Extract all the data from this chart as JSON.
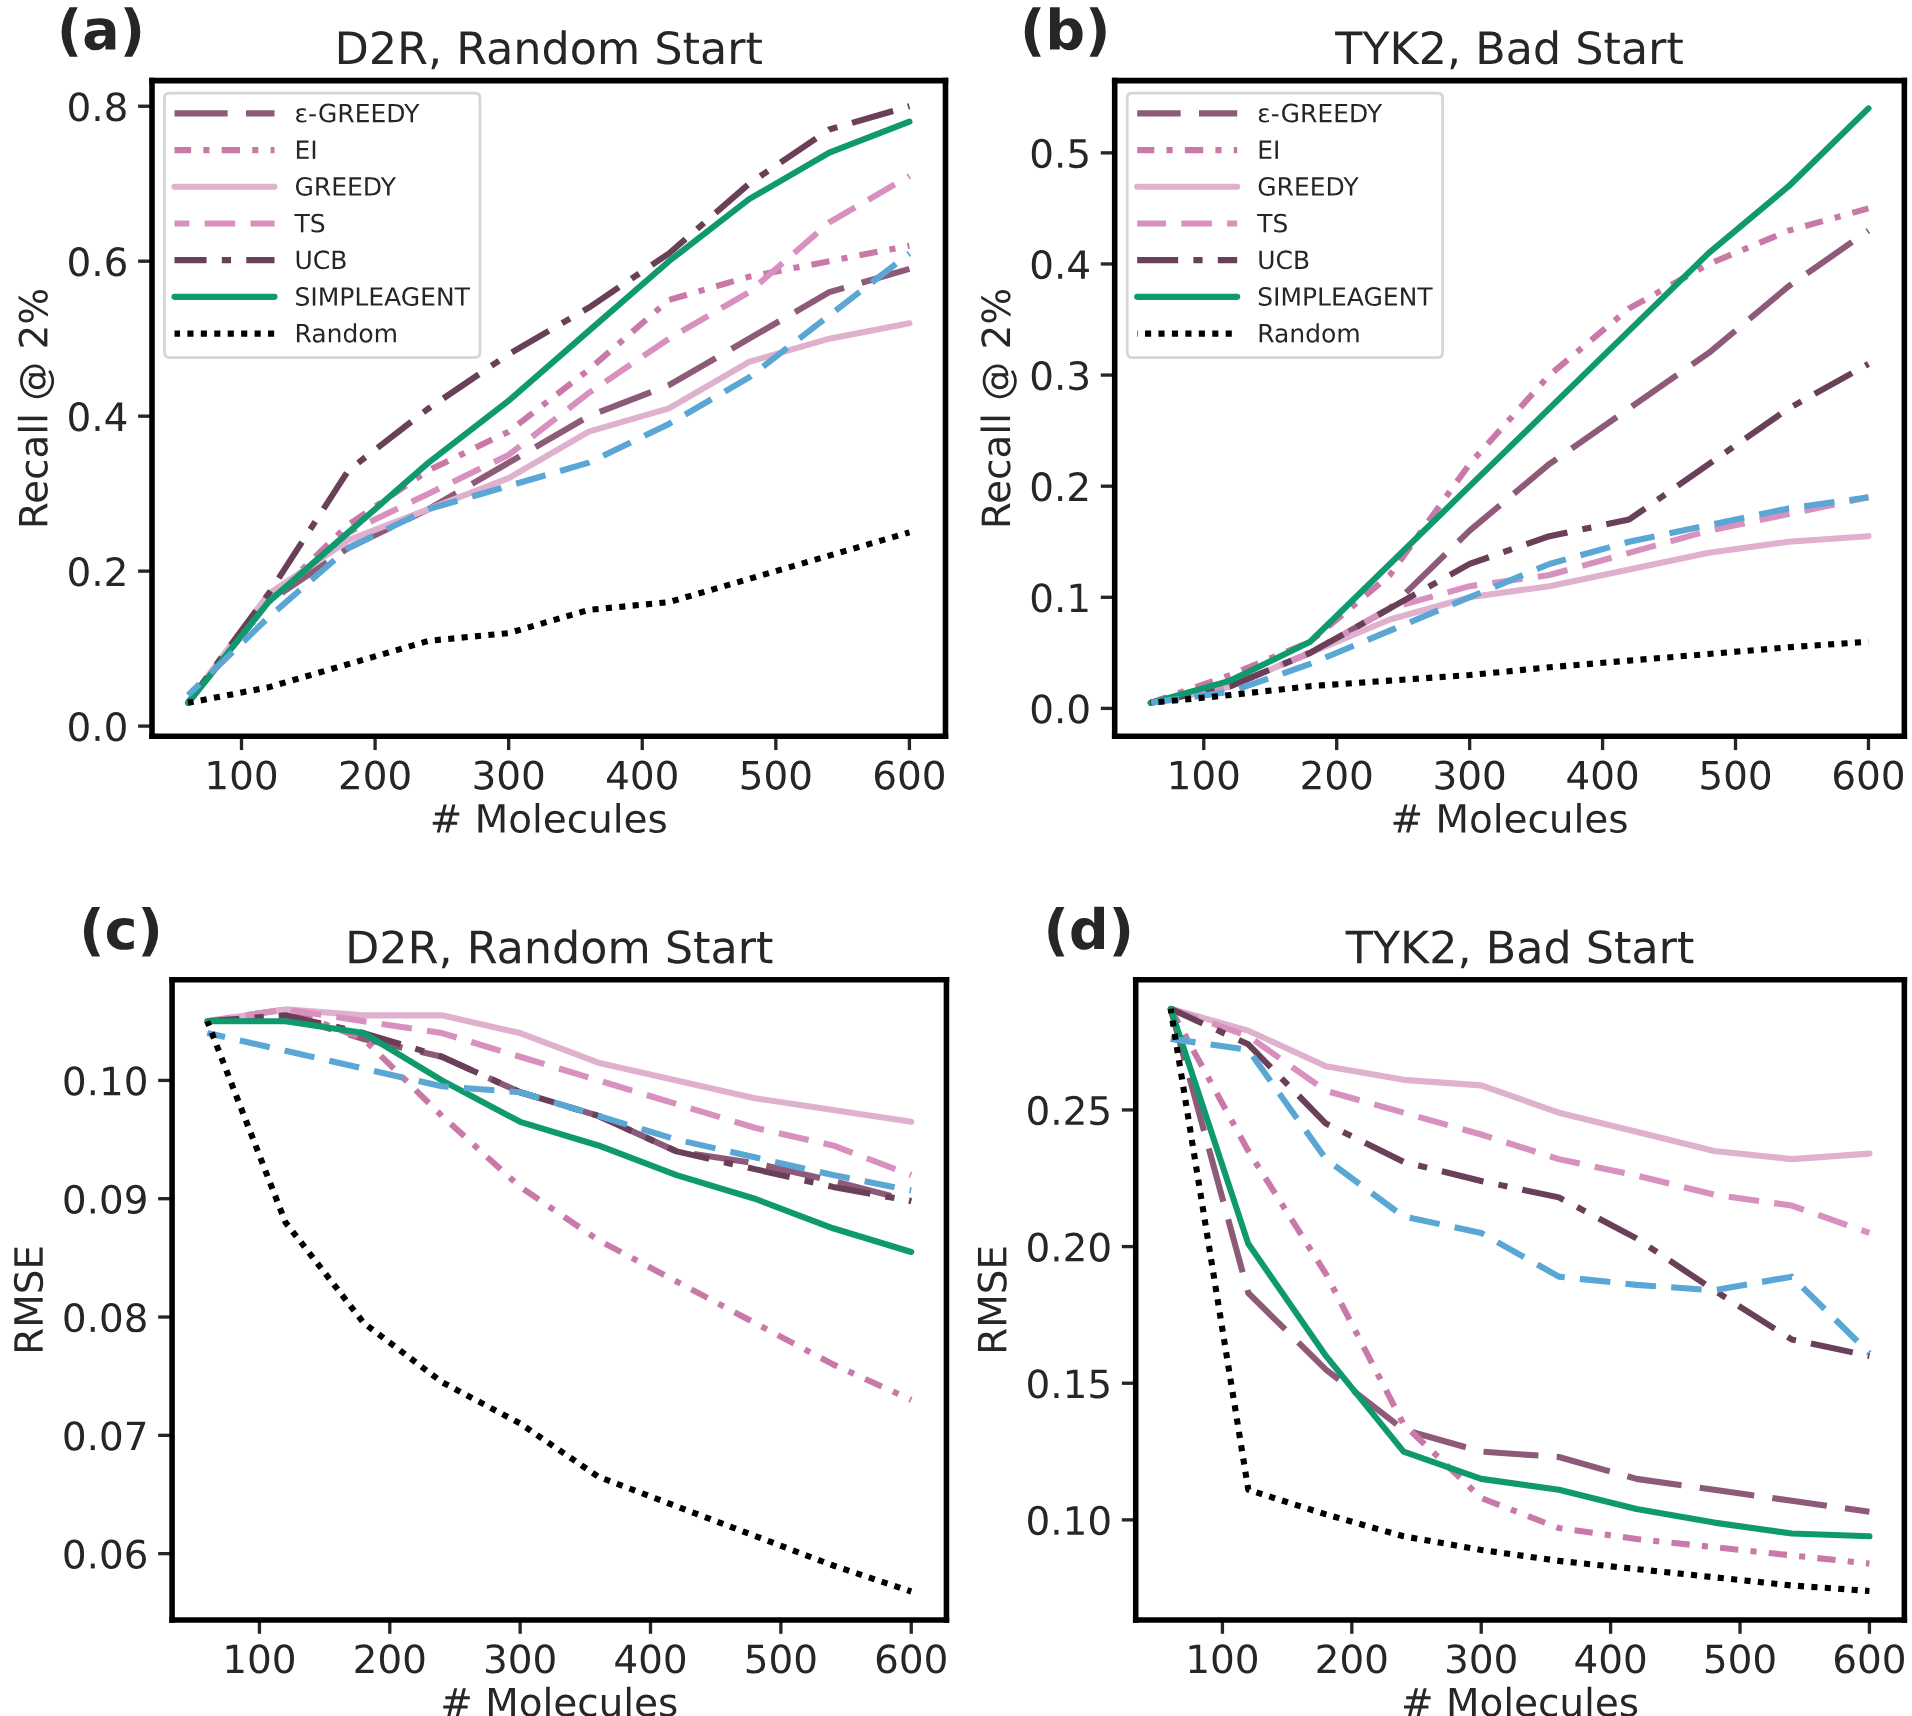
{
  "chart_data": [
    {
      "type": "line",
      "title": "D2R, Random Start",
      "annotations": [
        "(a)"
      ],
      "xlabel": "# Molecules",
      "ylabel": "Recall @ 2%",
      "x": [
        60,
        120,
        180,
        240,
        300,
        360,
        420,
        480,
        540,
        600
      ],
      "xlim": [
        33,
        627
      ],
      "xticks": [
        100,
        200,
        300,
        400,
        500,
        600
      ],
      "ylim": [
        -0.013,
        0.833
      ],
      "yticks": [
        {
          "value": 0,
          "label": "0.0"
        },
        0.2,
        0.4,
        0.6,
        0.8
      ],
      "legend": "top left",
      "grid": false,
      "series": [
        {
          "name": "ε-GREEDY",
          "color": "#8e5a7a",
          "line_style": "longdash",
          "values": [
            0.03,
            0.16,
            0.23,
            0.28,
            0.34,
            0.4,
            0.44,
            0.5,
            0.56,
            0.59
          ]
        },
        {
          "name": "EI",
          "color": "#c979a8",
          "line_style": "densedashdot",
          "values": [
            0.03,
            0.16,
            0.26,
            0.33,
            0.38,
            0.46,
            0.55,
            0.58,
            0.6,
            0.62
          ]
        },
        {
          "name": "GREEDY",
          "color": "#e0b0cf",
          "line_style": "solid",
          "values": [
            0.03,
            0.17,
            0.24,
            0.28,
            0.32,
            0.38,
            0.41,
            0.47,
            0.5,
            0.52
          ]
        },
        {
          "name": "TS",
          "color": "#d890bf",
          "line_style": "dashed",
          "values": [
            0.03,
            0.16,
            0.25,
            0.3,
            0.35,
            0.43,
            0.5,
            0.56,
            0.65,
            0.71
          ]
        },
        {
          "name": "UCB",
          "color": "#6a3f58",
          "line_style": "dashdot",
          "values": [
            0.03,
            0.17,
            0.33,
            0.41,
            0.48,
            0.54,
            0.61,
            0.7,
            0.77,
            0.8
          ]
        },
        {
          "name": "SIMPLEAGENT",
          "color": "#0f9a6e",
          "line_style": "solid",
          "values": [
            0.03,
            0.16,
            0.25,
            0.34,
            0.42,
            0.51,
            0.6,
            0.68,
            0.74,
            0.78
          ]
        },
        {
          "color": "#5aa6d4",
          "line_style": "dashed",
          "values": [
            0.04,
            0.14,
            0.23,
            0.28,
            0.31,
            0.34,
            0.39,
            0.45,
            0.53,
            0.61
          ]
        },
        {
          "name": "Random",
          "color": "#000000",
          "line_style": "dotted",
          "values": [
            0.03,
            0.05,
            0.08,
            0.11,
            0.12,
            0.15,
            0.16,
            0.19,
            0.22,
            0.25
          ]
        }
      ]
    },
    {
      "type": "line",
      "title": "TYK2, Bad Start",
      "annotations": [
        "(b)"
      ],
      "xlabel": "# Molecules",
      "ylabel": "Recall @ 2%",
      "x": [
        60,
        120,
        180,
        240,
        300,
        360,
        420,
        480,
        540,
        600
      ],
      "xlim": [
        33,
        627
      ],
      "xticks": [
        100,
        200,
        300,
        400,
        500,
        600
      ],
      "ylim": [
        -0.025,
        0.565
      ],
      "yticks": [
        {
          "value": 0,
          "label": "0.0"
        },
        0.1,
        0.2,
        0.3,
        0.4,
        0.5
      ],
      "legend": "top left",
      "grid": false,
      "series": [
        {
          "name": "ε-GREEDY",
          "color": "#8e5a7a",
          "line_style": "longdash",
          "values": [
            0.005,
            0.02,
            0.05,
            0.09,
            0.16,
            0.22,
            0.27,
            0.32,
            0.38,
            0.43
          ]
        },
        {
          "name": "EI",
          "color": "#c979a8",
          "line_style": "densedashdot",
          "values": [
            0.005,
            0.03,
            0.06,
            0.12,
            0.22,
            0.3,
            0.36,
            0.4,
            0.43,
            0.45
          ]
        },
        {
          "name": "GREEDY",
          "color": "#e0b0cf",
          "line_style": "solid",
          "values": [
            0.005,
            0.02,
            0.05,
            0.08,
            0.1,
            0.11,
            0.125,
            0.14,
            0.15,
            0.155
          ]
        },
        {
          "name": "TS",
          "color": "#d890bf",
          "line_style": "dashed",
          "values": [
            0.005,
            0.02,
            0.05,
            0.09,
            0.11,
            0.12,
            0.14,
            0.16,
            0.175,
            0.19
          ]
        },
        {
          "name": "UCB",
          "color": "#6a3f58",
          "line_style": "dashdot",
          "values": [
            0.005,
            0.02,
            0.05,
            0.09,
            0.13,
            0.155,
            0.17,
            0.22,
            0.27,
            0.31
          ]
        },
        {
          "name": "SIMPLEAGENT",
          "color": "#0f9a6e",
          "line_style": "solid",
          "values": [
            0.005,
            0.025,
            0.06,
            0.13,
            0.2,
            0.27,
            0.34,
            0.41,
            0.47,
            0.54
          ]
        },
        {
          "color": "#5aa6d4",
          "line_style": "dashed",
          "values": [
            0.005,
            0.015,
            0.04,
            0.07,
            0.1,
            0.13,
            0.15,
            0.165,
            0.18,
            0.19
          ]
        },
        {
          "name": "Random",
          "color": "#000000",
          "line_style": "dotted",
          "values": [
            0.005,
            0.012,
            0.02,
            0.025,
            0.03,
            0.037,
            0.043,
            0.049,
            0.055,
            0.06
          ]
        }
      ]
    },
    {
      "type": "line",
      "title": "D2R, Random Start",
      "annotations": [
        "(c)"
      ],
      "xlabel": "# Molecules",
      "ylabel": "RMSE",
      "x": [
        60,
        120,
        180,
        240,
        300,
        360,
        420,
        480,
        540,
        600
      ],
      "xlim": [
        33,
        627
      ],
      "xticks": [
        100,
        200,
        300,
        400,
        500,
        600
      ],
      "ylim": [
        0.0544,
        0.1085
      ],
      "yticks": [
        {
          "value": 0.06,
          "label": "0.06"
        },
        {
          "value": 0.07,
          "label": "0.07"
        },
        {
          "value": 0.08,
          "label": "0.08"
        },
        {
          "value": 0.09,
          "label": "0.09"
        },
        {
          "value": 0.1,
          "label": "0.10"
        }
      ],
      "legend": false,
      "grid": false,
      "series": [
        {
          "color": "#8e5a7a",
          "line_style": "longdash",
          "values": [
            0.105,
            0.1055,
            0.1035,
            0.102,
            0.099,
            0.097,
            0.094,
            0.093,
            0.0915,
            0.0898
          ]
        },
        {
          "color": "#c979a8",
          "line_style": "densedashdot",
          "values": [
            0.105,
            0.106,
            0.1035,
            0.097,
            0.091,
            0.0865,
            0.083,
            0.0795,
            0.076,
            0.073
          ]
        },
        {
          "color": "#e0b0cf",
          "line_style": "solid",
          "values": [
            0.105,
            0.106,
            0.1055,
            0.1055,
            0.104,
            0.1015,
            0.1,
            0.0985,
            0.0975,
            0.0965
          ]
        },
        {
          "color": "#d890bf",
          "line_style": "dashed",
          "values": [
            0.105,
            0.106,
            0.105,
            0.104,
            0.102,
            0.1,
            0.098,
            0.096,
            0.0945,
            0.092
          ]
        },
        {
          "color": "#6a3f58",
          "line_style": "dashdot",
          "values": [
            0.105,
            0.1055,
            0.104,
            0.102,
            0.099,
            0.097,
            0.094,
            0.0925,
            0.091,
            0.0898
          ]
        },
        {
          "color": "#0f9a6e",
          "line_style": "solid",
          "values": [
            0.105,
            0.105,
            0.104,
            0.1,
            0.0965,
            0.0945,
            0.092,
            0.09,
            0.0875,
            0.0855
          ]
        },
        {
          "color": "#5aa6d4",
          "line_style": "dashed",
          "values": [
            0.104,
            0.1025,
            0.101,
            0.0995,
            0.099,
            0.097,
            0.095,
            0.0935,
            0.092,
            0.0907
          ]
        },
        {
          "color": "#000000",
          "line_style": "dotted",
          "values": [
            0.105,
            0.088,
            0.0795,
            0.0745,
            0.071,
            0.0665,
            0.064,
            0.0615,
            0.059,
            0.0568
          ]
        }
      ]
    },
    {
      "type": "line",
      "title": "TYK2, Bad Start",
      "annotations": [
        "(d)"
      ],
      "xlabel": "# Molecules",
      "ylabel": "RMSE",
      "x": [
        60,
        120,
        180,
        240,
        300,
        360,
        420,
        480,
        540,
        600
      ],
      "xlim": [
        33,
        627
      ],
      "xticks": [
        100,
        200,
        300,
        400,
        500,
        600
      ],
      "ylim": [
        0.0634,
        0.2976
      ],
      "yticks": [
        {
          "value": 0.1,
          "label": "0.10"
        },
        0.15,
        {
          "value": 0.2,
          "label": "0.20"
        },
        0.25
      ],
      "legend": false,
      "grid": false,
      "series": [
        {
          "color": "#8e5a7a",
          "line_style": "longdash",
          "values": [
            0.287,
            0.183,
            0.155,
            0.133,
            0.125,
            0.123,
            0.115,
            0.111,
            0.107,
            0.103
          ]
        },
        {
          "color": "#c979a8",
          "line_style": "densedashdot",
          "values": [
            0.287,
            0.235,
            0.19,
            0.135,
            0.108,
            0.097,
            0.093,
            0.09,
            0.087,
            0.084
          ]
        },
        {
          "color": "#e0b0cf",
          "line_style": "solid",
          "values": [
            0.287,
            0.279,
            0.266,
            0.261,
            0.259,
            0.249,
            0.242,
            0.235,
            0.232,
            0.234
          ]
        },
        {
          "color": "#d890bf",
          "line_style": "dashed",
          "values": [
            0.287,
            0.277,
            0.257,
            0.249,
            0.241,
            0.232,
            0.226,
            0.219,
            0.215,
            0.205
          ]
        },
        {
          "color": "#6a3f58",
          "line_style": "dashdot",
          "values": [
            0.287,
            0.274,
            0.245,
            0.231,
            0.224,
            0.218,
            0.203,
            0.184,
            0.166,
            0.16
          ]
        },
        {
          "color": "#0f9a6e",
          "line_style": "solid",
          "values": [
            0.287,
            0.201,
            0.16,
            0.125,
            0.115,
            0.111,
            0.104,
            0.099,
            0.095,
            0.094
          ]
        },
        {
          "color": "#5aa6d4",
          "line_style": "dashed",
          "values": [
            0.276,
            0.272,
            0.232,
            0.211,
            0.205,
            0.189,
            0.186,
            0.184,
            0.189,
            0.161
          ]
        },
        {
          "color": "#000000",
          "line_style": "dotted",
          "values": [
            0.287,
            0.111,
            0.102,
            0.094,
            0.089,
            0.085,
            0.082,
            0.079,
            0.076,
            0.074
          ]
        }
      ]
    }
  ]
}
